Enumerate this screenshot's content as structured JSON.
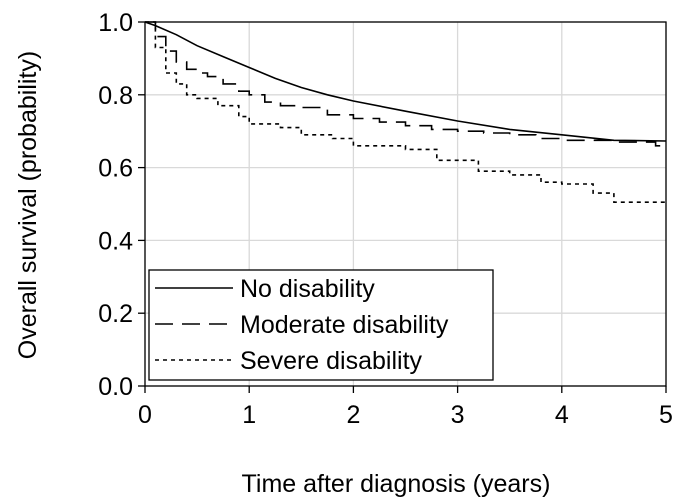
{
  "chart_data": {
    "type": "line",
    "title": "",
    "xlabel": "Time after diagnosis (years)",
    "ylabel": "Overall survival (probability)",
    "xlim": [
      0,
      5
    ],
    "ylim": [
      0,
      1
    ],
    "x_ticks": [
      "0",
      "1",
      "2",
      "3",
      "4",
      "5"
    ],
    "y_ticks": [
      "0.0",
      "0.2",
      "0.4",
      "0.6",
      "0.8",
      "1.0"
    ],
    "grid": true,
    "legend_position": "bottom-left",
    "series": [
      {
        "name": "No disability",
        "style": "solid",
        "step": false,
        "x": [
          0,
          0.1,
          0.3,
          0.5,
          0.75,
          1.0,
          1.25,
          1.5,
          1.75,
          2.0,
          2.5,
          3.0,
          3.5,
          4.0,
          4.5,
          5.0
        ],
        "y": [
          1.0,
          0.99,
          0.965,
          0.935,
          0.905,
          0.875,
          0.845,
          0.82,
          0.8,
          0.783,
          0.755,
          0.728,
          0.705,
          0.69,
          0.675,
          0.673
        ]
      },
      {
        "name": "Moderate disability",
        "style": "dashed",
        "step": true,
        "x": [
          0,
          0.1,
          0.2,
          0.3,
          0.4,
          0.5,
          0.6,
          0.75,
          0.9,
          1.0,
          1.15,
          1.3,
          1.5,
          1.75,
          2.0,
          2.25,
          2.5,
          2.75,
          3.0,
          3.25,
          3.5,
          3.75,
          4.0,
          4.5,
          4.9,
          5.0
        ],
        "y": [
          1.0,
          0.96,
          0.92,
          0.89,
          0.87,
          0.86,
          0.85,
          0.83,
          0.81,
          0.8,
          0.78,
          0.77,
          0.765,
          0.745,
          0.735,
          0.725,
          0.715,
          0.705,
          0.7,
          0.695,
          0.69,
          0.68,
          0.675,
          0.67,
          0.66,
          0.655
        ]
      },
      {
        "name": "Severe disability",
        "style": "dotted",
        "step": true,
        "x": [
          0,
          0.1,
          0.2,
          0.3,
          0.4,
          0.5,
          0.7,
          0.9,
          1.0,
          1.3,
          1.5,
          1.8,
          2.0,
          2.5,
          2.8,
          3.0,
          3.2,
          3.5,
          3.8,
          4.0,
          4.3,
          4.5,
          5.0
        ],
        "y": [
          1.0,
          0.93,
          0.86,
          0.83,
          0.8,
          0.79,
          0.77,
          0.74,
          0.72,
          0.71,
          0.69,
          0.68,
          0.66,
          0.65,
          0.62,
          0.62,
          0.59,
          0.58,
          0.56,
          0.555,
          0.53,
          0.505,
          0.505
        ]
      }
    ]
  },
  "colors": {
    "line": "#000000",
    "grid": "#d9d9d9",
    "background": "#ffffff"
  }
}
